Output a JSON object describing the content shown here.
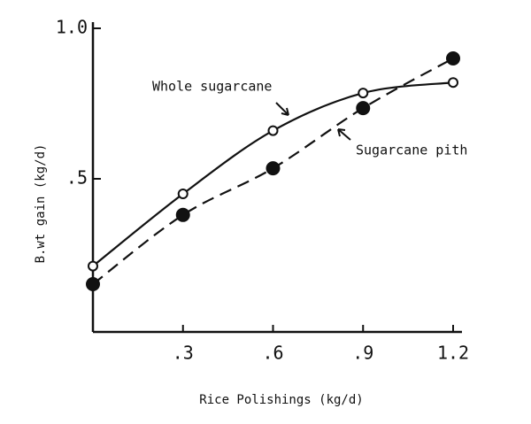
{
  "chart_data": {
    "type": "line",
    "x_label": "Rice Polishings (kg/d)",
    "y_label": "B.wt gain (kg/d)",
    "x": [
      0,
      0.3,
      0.6,
      0.9,
      1.2
    ],
    "series": [
      {
        "name": "Whole sugarcane",
        "color": "#111111",
        "marker": "open",
        "dashed": false,
        "values": [
          0.21,
          0.45,
          0.66,
          0.785,
          0.82
        ]
      },
      {
        "name": "Sugarcane pith",
        "color": "#111111",
        "marker": "filled",
        "dashed": true,
        "values": [
          0.15,
          0.38,
          0.535,
          0.735,
          0.9
        ]
      }
    ],
    "xlim": [
      0,
      1.2
    ],
    "ylim": [
      0,
      1.0
    ],
    "xticks": [
      {
        "value": 0.3,
        "label": ".3"
      },
      {
        "value": 0.6,
        "label": ".6"
      },
      {
        "value": 0.9,
        "label": ".9"
      },
      1.2
    ],
    "yticks": [
      {
        "value": 0.5,
        "label": ".5"
      },
      {
        "value": 1.0,
        "label": "1.0"
      }
    ],
    "grid": false
  }
}
